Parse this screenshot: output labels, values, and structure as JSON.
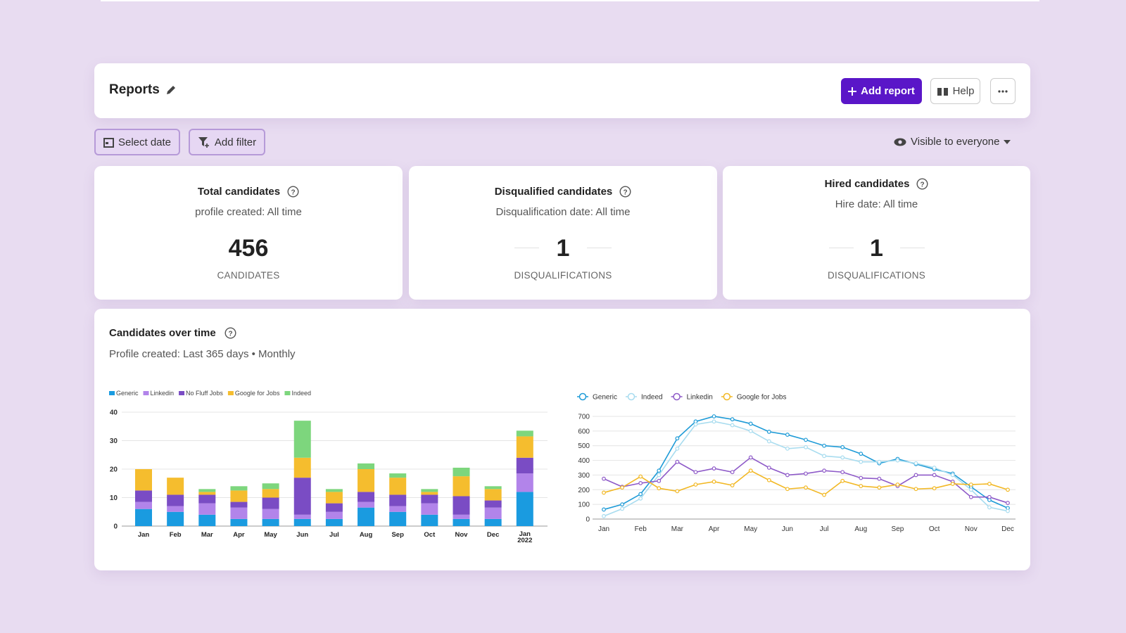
{
  "header": {
    "title": "Reports",
    "add_report": "Add report",
    "help": "Help"
  },
  "toolbar": {
    "select_date": "Select date",
    "add_filter": "Add filter",
    "visibility": "Visible to everyone"
  },
  "cards": [
    {
      "title": "Total candidates",
      "subtitle": "profile created: All time",
      "value": 456,
      "unit": "CANDIDATES"
    },
    {
      "title": "Disqualified candidates",
      "subtitle": "Disqualification date: All time",
      "value": 1,
      "unit": "DISQUALIFICATIONS"
    },
    {
      "title": "Hired candidates",
      "subtitle": "Hire date: All time",
      "value": 1,
      "unit": "DISQUALIFICATIONS"
    }
  ],
  "panel": {
    "title": "Candidates over time",
    "subtitle": "Profile created: Last 365 days • Monthly"
  },
  "chart_data": [
    {
      "type": "bar",
      "stacked": true,
      "legend": "top-left",
      "grid": true,
      "categories": [
        "Jan",
        "Feb",
        "Mar",
        "Apr",
        "May",
        "Jun",
        "Jul",
        "Aug",
        "Sep",
        "Oct",
        "Nov",
        "Dec",
        "Jan 2022"
      ],
      "series": [
        {
          "name": "Generic",
          "color": "#1a9be0",
          "values": [
            6,
            5,
            4,
            2.5,
            2.5,
            2.5,
            2.5,
            6.5,
            5,
            4,
            2.5,
            2.5,
            12
          ]
        },
        {
          "name": "Linkedin",
          "color": "#b284ea",
          "values": [
            2.5,
            2,
            4,
            4,
            3.5,
            1.5,
            2.5,
            2,
            2,
            4,
            1.5,
            4,
            6.5
          ]
        },
        {
          "name": "No Fluff Jobs",
          "color": "#7a4cc4",
          "values": [
            4,
            4,
            3,
            2,
            4,
            13,
            3,
            3.5,
            4,
            3,
            6.5,
            2.5,
            5.5
          ]
        },
        {
          "name": "Google for Jobs",
          "color": "#f5bd2e",
          "values": [
            7.5,
            6,
            1,
            4,
            3,
            7,
            4,
            8,
            6,
            1,
            7,
            4,
            7.5
          ]
        },
        {
          "name": "Indeed",
          "color": "#7dd67d",
          "values": [
            0,
            0,
            1,
            1.5,
            2,
            13,
            1,
            2,
            1.5,
            1,
            3,
            1,
            2
          ]
        }
      ],
      "ylim": [
        0,
        40
      ],
      "yticks": [
        0,
        10,
        20,
        30,
        40
      ]
    },
    {
      "type": "line",
      "legend": "top-left",
      "grid": true,
      "categories": [
        "Jan",
        null,
        "Feb",
        null,
        "Mar",
        null,
        "Apr",
        null,
        "May",
        null,
        "Jun",
        null,
        "Jul",
        null,
        "Aug",
        null,
        "Sep",
        null,
        "Oct",
        null,
        "Nov",
        null,
        "Dec"
      ],
      "series": [
        {
          "name": "Generic",
          "color": "#1e9bd7",
          "values": [
            65,
            100,
            170,
            330,
            550,
            665,
            700,
            680,
            650,
            595,
            575,
            540,
            500,
            490,
            445,
            380,
            410,
            375,
            340,
            310,
            220,
            130,
            75
          ]
        },
        {
          "name": "Indeed",
          "color": "#a8dcef",
          "values": [
            20,
            70,
            140,
            300,
            480,
            645,
            665,
            640,
            600,
            530,
            480,
            490,
            430,
            420,
            390,
            390,
            400,
            380,
            350,
            300,
            200,
            80,
            55
          ]
        },
        {
          "name": "Linkedin",
          "color": "#8e5ac8",
          "values": [
            275,
            220,
            245,
            260,
            390,
            320,
            345,
            320,
            420,
            350,
            300,
            310,
            330,
            320,
            280,
            275,
            225,
            300,
            300,
            255,
            150,
            150,
            110
          ]
        },
        {
          "name": "Google for Jobs",
          "color": "#f2b824",
          "values": [
            180,
            215,
            290,
            210,
            190,
            235,
            255,
            230,
            330,
            265,
            205,
            215,
            165,
            260,
            225,
            215,
            235,
            205,
            210,
            240,
            235,
            240,
            200
          ]
        }
      ],
      "ylim": [
        0,
        700
      ],
      "yticks": [
        0,
        100,
        200,
        300,
        400,
        500,
        600,
        700
      ]
    }
  ]
}
